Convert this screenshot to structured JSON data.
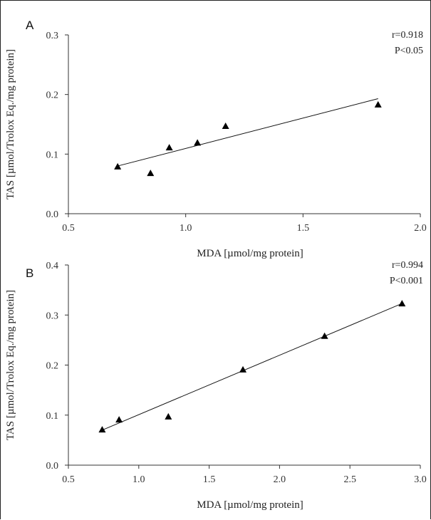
{
  "chart_data": [
    {
      "type": "scatter",
      "panel_label": "A",
      "xlabel": "MDA [µmol/mg protein]",
      "ylabel": "TAS [µmol/Trolox Eq./mg protein]",
      "xlim": [
        0.5,
        2.0
      ],
      "ylim": [
        0.0,
        0.3
      ],
      "xticks": [
        "0.5",
        "1.0",
        "1.5",
        "2.0"
      ],
      "yticks": [
        "0.0",
        "0.1",
        "0.2",
        "0.3"
      ],
      "points": [
        {
          "x": 0.71,
          "y": 0.079
        },
        {
          "x": 0.85,
          "y": 0.068
        },
        {
          "x": 0.93,
          "y": 0.111
        },
        {
          "x": 1.05,
          "y": 0.119
        },
        {
          "x": 1.17,
          "y": 0.147
        },
        {
          "x": 1.82,
          "y": 0.183
        }
      ],
      "trendline": {
        "x": [
          0.71,
          1.82
        ],
        "y": [
          0.08,
          0.193
        ]
      },
      "stats": [
        "r=0.918",
        "P<0.05"
      ],
      "grid": false,
      "marker": "triangle"
    },
    {
      "type": "scatter",
      "panel_label": "B",
      "xlabel": "MDA [µmol/mg protein]",
      "ylabel": "TAS [µmol/Trolox Eq./mg protein]",
      "xlim": [
        0.5,
        3.0
      ],
      "ylim": [
        0.0,
        0.4
      ],
      "xticks": [
        "0.5",
        "1.0",
        "1.5",
        "2.0",
        "2.5",
        "3.0"
      ],
      "yticks": [
        "0.0",
        "0.1",
        "0.2",
        "0.3",
        "0.4"
      ],
      "points": [
        {
          "x": 0.74,
          "y": 0.071
        },
        {
          "x": 0.86,
          "y": 0.091
        },
        {
          "x": 1.21,
          "y": 0.097
        },
        {
          "x": 1.74,
          "y": 0.191
        },
        {
          "x": 2.32,
          "y": 0.258
        },
        {
          "x": 2.87,
          "y": 0.323
        }
      ],
      "trendline": {
        "x": [
          0.74,
          2.87
        ],
        "y": [
          0.07,
          0.323
        ]
      },
      "stats": [
        "r=0.994",
        "P<0.001"
      ],
      "grid": false,
      "marker": "triangle"
    }
  ]
}
